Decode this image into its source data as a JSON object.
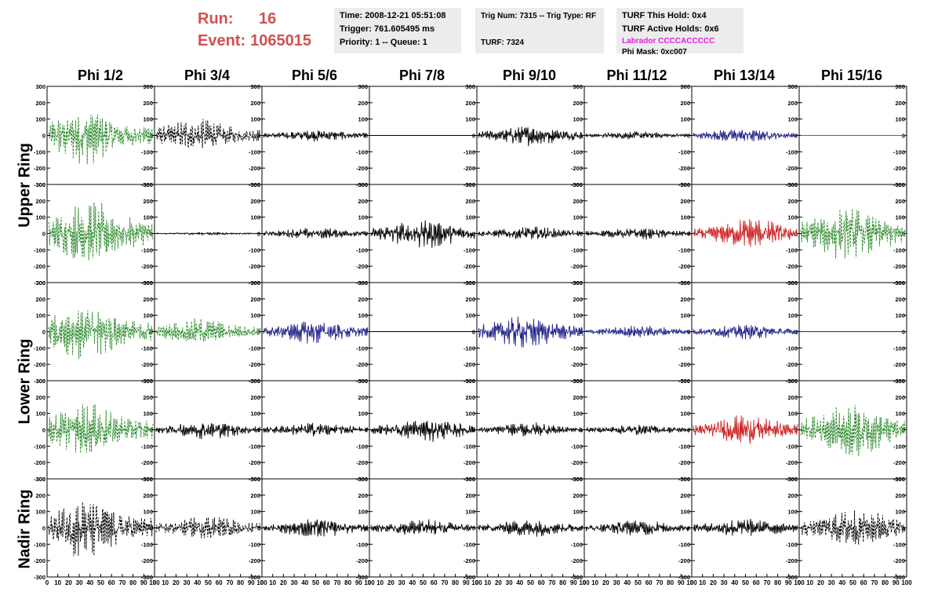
{
  "run": {
    "run_label": "Run:",
    "run_value": "16",
    "event_label": "Event:",
    "event_value": "1065015",
    "color": "#d05050"
  },
  "info1": {
    "time": "Time: 2008-12-21 05:51:08",
    "trigger": "Trigger: 761.605495 ms",
    "priority": "Priority: 1 -- Queue: 1"
  },
  "info2": {
    "trig": "Trig Num: 7315 -- Trig Type: RF",
    "turf": "TURF: 7324"
  },
  "info3": {
    "hold": "TURF This Hold: 0x4",
    "active": "TURF Active Holds: 0x6",
    "labrador": "Labrador CCCCACCCCC",
    "labrador_color": "#e020e0",
    "phimask": "Phi Mask: 0xc007"
  },
  "columns": [
    "Phi 1/2",
    "Phi 3/4",
    "Phi 5/6",
    "Phi 7/8",
    "Phi 9/10",
    "Phi 11/12",
    "Phi 13/14",
    "Phi 15/16"
  ],
  "ring_labels": [
    "Upper Ring",
    "Lower Ring",
    "Nadir Ring"
  ],
  "axis": {
    "y_ticks": [
      "300",
      "200",
      "100",
      "0",
      "-100",
      "-200",
      "-300"
    ],
    "x_ticks": [
      "0",
      "10",
      "20",
      "30",
      "40",
      "50",
      "60",
      "70",
      "80",
      "90",
      "100"
    ],
    "x_range": [
      0,
      100
    ],
    "y_range": [
      -300,
      300
    ]
  },
  "colors": {
    "green": "#2a8a2a",
    "black": "#000000",
    "blue": "#222288",
    "red": "#cc2222"
  },
  "panels": [
    [
      {
        "color": "green",
        "amp": 130,
        "style": "dashed",
        "center": 35
      },
      {
        "color": "black",
        "amp": 75,
        "style": "dashed",
        "center": 38
      },
      {
        "color": "black",
        "amp": 28,
        "style": "solid",
        "center": 50
      },
      {
        "color": "black",
        "amp": 0,
        "style": "flat",
        "center": 50
      },
      {
        "color": "black",
        "amp": 48,
        "style": "solid",
        "center": 50
      },
      {
        "color": "black",
        "amp": 18,
        "style": "solid",
        "center": 50
      },
      {
        "color": "blue",
        "amp": 32,
        "style": "solid",
        "center": 45
      },
      {
        "color": "green",
        "amp": 0,
        "style": "flat",
        "center": 50
      }
    ],
    [
      {
        "color": "green",
        "amp": 150,
        "style": "dashed",
        "center": 40
      },
      {
        "color": "black",
        "amp": 6,
        "style": "solid",
        "center": 50
      },
      {
        "color": "black",
        "amp": 28,
        "style": "solid",
        "center": 50
      },
      {
        "color": "black",
        "amp": 70,
        "style": "solid",
        "center": 50
      },
      {
        "color": "black",
        "amp": 32,
        "style": "solid",
        "center": 50
      },
      {
        "color": "black",
        "amp": 28,
        "style": "solid",
        "center": 50
      },
      {
        "color": "red",
        "amp": 70,
        "style": "solid",
        "center": 55
      },
      {
        "color": "green",
        "amp": 130,
        "style": "dashed",
        "center": 45
      }
    ],
    [
      {
        "color": "green",
        "amp": 130,
        "style": "dashed",
        "center": 35
      },
      {
        "color": "green",
        "amp": 60,
        "style": "dashed",
        "center": 40
      },
      {
        "color": "blue",
        "amp": 55,
        "style": "solid",
        "center": 50
      },
      {
        "color": "black",
        "amp": 0,
        "style": "flat",
        "center": 50
      },
      {
        "color": "blue",
        "amp": 75,
        "style": "solid",
        "center": 45
      },
      {
        "color": "blue",
        "amp": 30,
        "style": "solid",
        "center": 50
      },
      {
        "color": "blue",
        "amp": 35,
        "style": "solid",
        "center": 50
      },
      {
        "color": "blue",
        "amp": 0,
        "style": "flat",
        "center": 50
      }
    ],
    [
      {
        "color": "green",
        "amp": 120,
        "style": "dashed",
        "center": 35
      },
      {
        "color": "black",
        "amp": 42,
        "style": "solid",
        "center": 50
      },
      {
        "color": "black",
        "amp": 35,
        "style": "solid",
        "center": 50
      },
      {
        "color": "black",
        "amp": 55,
        "style": "solid",
        "center": 55
      },
      {
        "color": "black",
        "amp": 35,
        "style": "solid",
        "center": 50
      },
      {
        "color": "black",
        "amp": 25,
        "style": "solid",
        "center": 50
      },
      {
        "color": "red",
        "amp": 70,
        "style": "solid",
        "center": 50
      },
      {
        "color": "green",
        "amp": 125,
        "style": "dashed",
        "center": 50
      }
    ],
    [
      {
        "color": "black",
        "amp": 140,
        "style": "dashed",
        "center": 35
      },
      {
        "color": "black",
        "amp": 55,
        "style": "dashed",
        "center": 50
      },
      {
        "color": "black",
        "amp": 45,
        "style": "solid",
        "center": 50
      },
      {
        "color": "black",
        "amp": 40,
        "style": "solid",
        "center": 50
      },
      {
        "color": "black",
        "amp": 40,
        "style": "solid",
        "center": 50
      },
      {
        "color": "black",
        "amp": 38,
        "style": "solid",
        "center": 50
      },
      {
        "color": "black",
        "amp": 45,
        "style": "solid",
        "center": 50
      },
      {
        "color": "black",
        "amp": 90,
        "style": "dashed",
        "center": 55
      }
    ]
  ]
}
